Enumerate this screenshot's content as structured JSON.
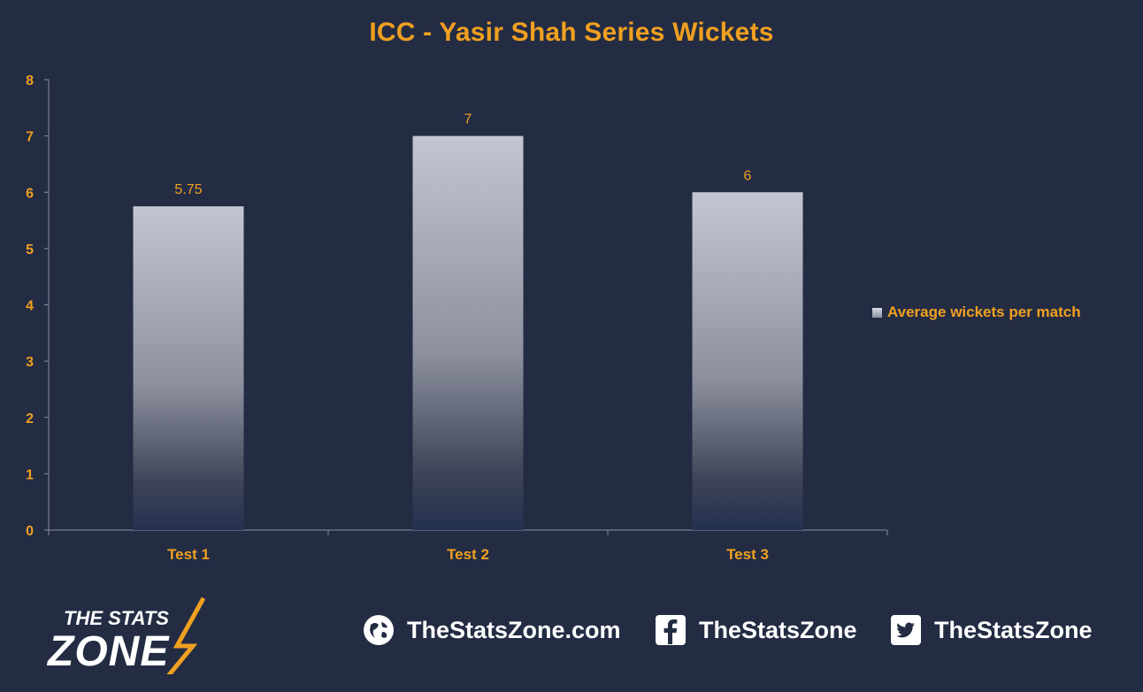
{
  "chart_data": {
    "type": "bar",
    "title": "ICC - Yasir Shah Series Wickets",
    "categories": [
      "Test 1",
      "Test 2",
      "Test 3"
    ],
    "series": [
      {
        "name": "Average wickets per match",
        "values": [
          5.75,
          7,
          6
        ]
      }
    ],
    "value_labels": [
      "5.75",
      "7",
      "6"
    ],
    "y_ticks": [
      "0",
      "1",
      "2",
      "3",
      "4",
      "5",
      "6",
      "7",
      "8"
    ],
    "ylim": [
      0,
      8
    ],
    "xlabel": "",
    "ylabel": "",
    "grid": false,
    "legend_position": "right",
    "colors": {
      "background": "#232c43",
      "text": "#f0a020",
      "bar_top": "#c3c6d0",
      "bar_bottom": "#23304f",
      "axis": "#8a90a0"
    }
  },
  "footer": {
    "logo_line1": "THE STATS",
    "logo_line2": "ZONE",
    "website": "TheStatsZone.com",
    "facebook": "TheStatsZone",
    "twitter": "TheStatsZone",
    "icons": [
      "globe-icon",
      "facebook-icon",
      "twitter-icon"
    ]
  }
}
